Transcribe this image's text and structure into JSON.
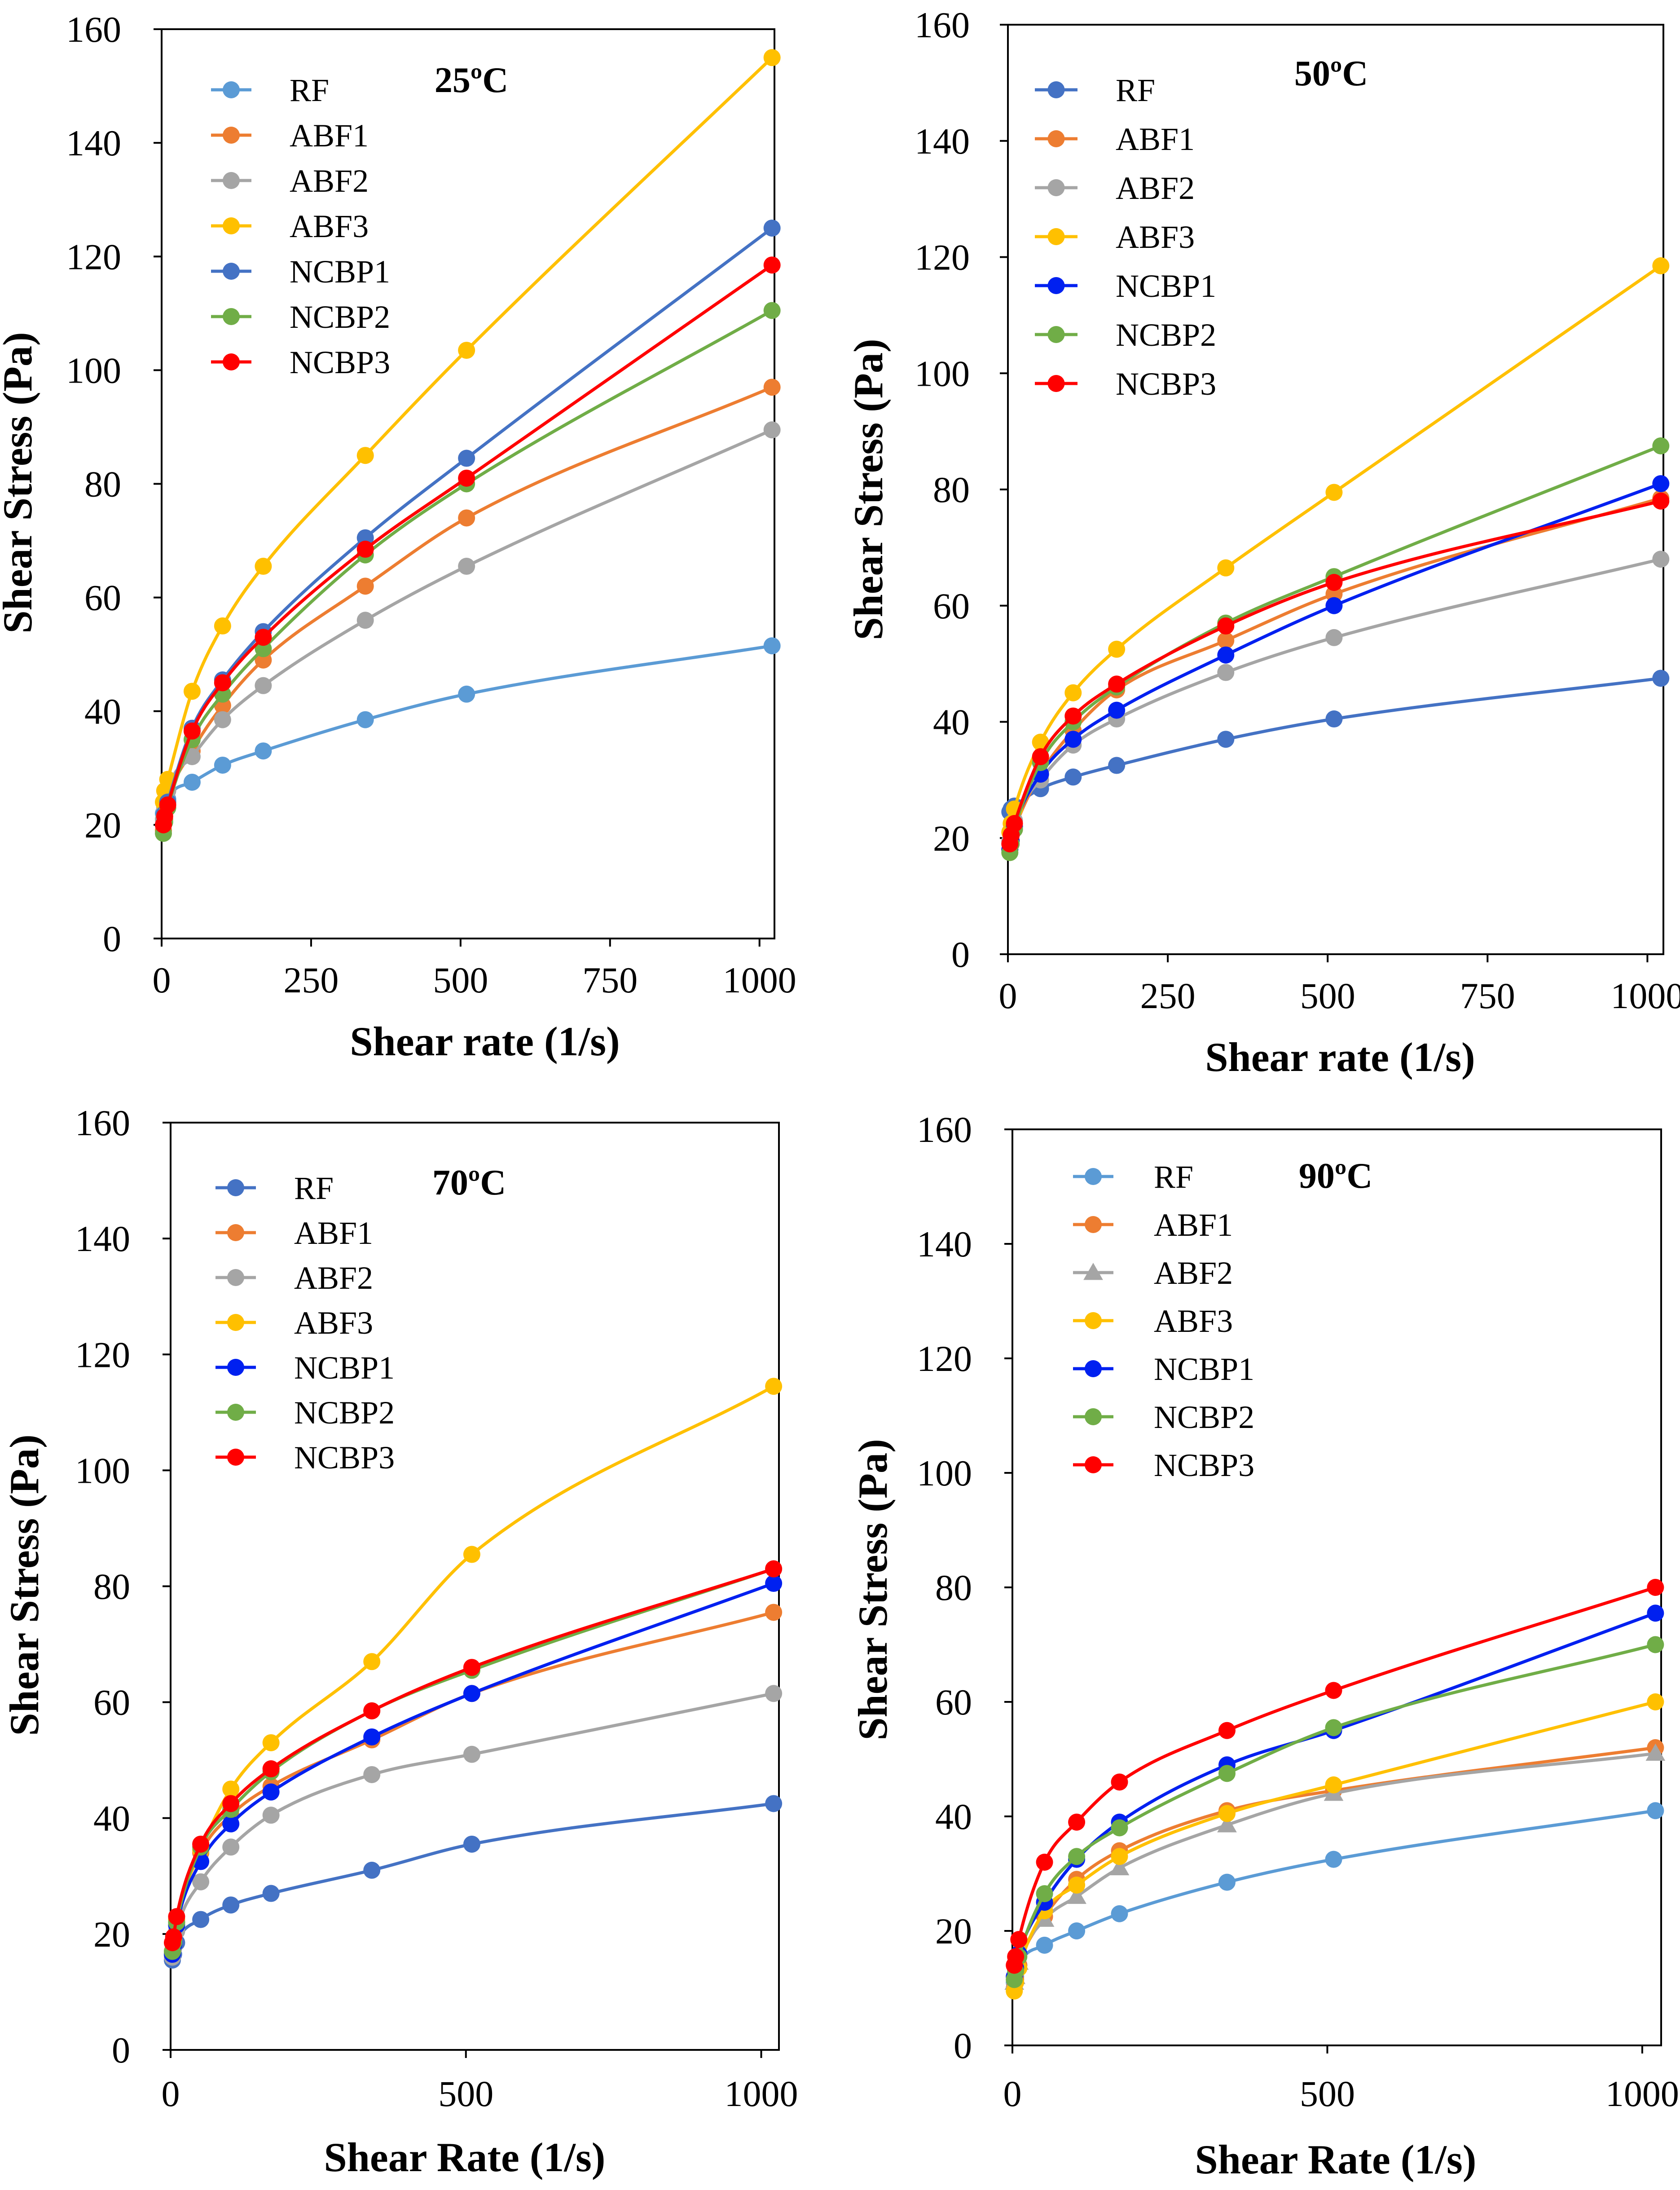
{
  "chart_data": [
    {
      "type": "line",
      "title": "25ºC",
      "xlabel": "Shear rate (1/s)",
      "ylabel": "Shear Stress (Pa)",
      "xlim": [
        0,
        1025
      ],
      "ylim": [
        0,
        160
      ],
      "xticks": [
        "0",
        "250",
        "500",
        "750",
        "1000"
      ],
      "xtick_values": [
        0,
        250,
        500,
        750,
        1000
      ],
      "yticks": [
        "0",
        "20",
        "40",
        "60",
        "80",
        "100",
        "120",
        "140",
        "160"
      ],
      "ytick_values": [
        0,
        20,
        40,
        60,
        80,
        100,
        120,
        140,
        160
      ],
      "x": [
        3,
        5.1,
        10.2,
        51,
        102,
        170,
        340.7,
        510,
        1021
      ],
      "series": [
        {
          "name": "RF",
          "color": "#5B9BD5",
          "marker": "circle",
          "values": [
            22,
            22.5,
            24.5,
            27.5,
            30.5,
            33,
            38.5,
            43,
            51.5
          ]
        },
        {
          "name": "ABF1",
          "color": "#ED7D31",
          "marker": "circle",
          "values": [
            19,
            21,
            24,
            33,
            41,
            49,
            62,
            74,
            97
          ]
        },
        {
          "name": "ABF2",
          "color": "#A5A5A5",
          "marker": "circle",
          "values": [
            21,
            23,
            26,
            32,
            38.5,
            44.5,
            56,
            65.5,
            89.5
          ]
        },
        {
          "name": "ABF3",
          "color": "#FFC000",
          "marker": "circle",
          "values": [
            24,
            26,
            28,
            43.5,
            55,
            65.5,
            85,
            103.5,
            155
          ]
        },
        {
          "name": "NCBP1",
          "color": "#4472C4",
          "marker": "circle",
          "values": [
            20,
            22,
            24,
            37,
            45.5,
            54,
            70.5,
            84.5,
            125
          ]
        },
        {
          "name": "NCBP2",
          "color": "#70AD47",
          "marker": "circle",
          "values": [
            18.5,
            20.5,
            23,
            35,
            43,
            51,
            67.5,
            80,
            110.5
          ]
        },
        {
          "name": "NCBP3",
          "color": "#FF0000",
          "marker": "circle",
          "values": [
            20,
            21.5,
            23.5,
            36.5,
            45,
            53,
            68.5,
            81,
            118.5
          ]
        }
      ]
    },
    {
      "type": "line",
      "title": "50ºC",
      "xlabel": "Shear rate (1/s)",
      "ylabel": "Shear Stress (Pa)",
      "xlim": [
        0,
        1025
      ],
      "ylim": [
        0,
        160
      ],
      "xticks": [
        "0",
        "250",
        "500",
        "750",
        "1000"
      ],
      "xtick_values": [
        0,
        250,
        500,
        750,
        1000
      ],
      "yticks": [
        "0",
        "20",
        "40",
        "60",
        "80",
        "100",
        "120",
        "140",
        "160"
      ],
      "ytick_values": [
        0,
        20,
        40,
        60,
        80,
        100,
        120,
        140,
        160
      ],
      "x": [
        3,
        5.1,
        10.2,
        51,
        102,
        170,
        340.7,
        510,
        1021
      ],
      "series": [
        {
          "name": "RF",
          "color": "#4472C4",
          "marker": "circle",
          "values": [
            24.5,
            25,
            25.5,
            28.5,
            30.5,
            32.5,
            37,
            40.5,
            47.5
          ]
        },
        {
          "name": "ABF1",
          "color": "#ED7D31",
          "marker": "circle",
          "values": [
            18,
            19.5,
            21.5,
            31,
            38.5,
            45.5,
            54,
            62,
            78.5
          ]
        },
        {
          "name": "ABF2",
          "color": "#A5A5A5",
          "marker": "circle",
          "values": [
            19.5,
            20.5,
            23,
            30,
            36,
            40.5,
            48.5,
            54.5,
            68
          ]
        },
        {
          "name": "ABF3",
          "color": "#FFC000",
          "marker": "circle",
          "values": [
            21,
            22.5,
            25,
            36.5,
            45,
            52.5,
            66.5,
            79.5,
            118.5
          ]
        },
        {
          "name": "NCBP1",
          "color": "#0020F0",
          "marker": "circle",
          "values": [
            18,
            19.5,
            22,
            31,
            37,
            42,
            51.5,
            60,
            81
          ]
        },
        {
          "name": "NCBP2",
          "color": "#70AD47",
          "marker": "circle",
          "values": [
            17.5,
            19,
            21.5,
            33,
            40,
            46,
            57,
            65,
            87.5
          ]
        },
        {
          "name": "NCBP3",
          "color": "#FF0000",
          "marker": "circle",
          "values": [
            19,
            20.5,
            22.5,
            34,
            41,
            46.5,
            56.5,
            64,
            78
          ]
        }
      ]
    },
    {
      "type": "line",
      "title": "70ºC",
      "xlabel": "Shear Rate (1/s)",
      "ylabel": "Shear Stress (Pa)",
      "xlim": [
        0,
        1030
      ],
      "ylim": [
        0,
        160
      ],
      "xticks": [
        "0",
        "500",
        "1000"
      ],
      "xtick_values": [
        0,
        500,
        1000
      ],
      "yticks": [
        "0",
        "20",
        "40",
        "60",
        "80",
        "100",
        "120",
        "140",
        "160"
      ],
      "ytick_values": [
        0,
        20,
        40,
        60,
        80,
        100,
        120,
        140,
        160
      ],
      "x": [
        3,
        5.1,
        10.2,
        51,
        102,
        170,
        340.7,
        510,
        1021
      ],
      "series": [
        {
          "name": "RF",
          "color": "#4472C4",
          "marker": "circle",
          "values": [
            15.5,
            16.5,
            18.5,
            22.5,
            25,
            27,
            31,
            35.5,
            42.5
          ]
        },
        {
          "name": "ABF1",
          "color": "#ED7D31",
          "marker": "circle",
          "values": [
            16.5,
            18,
            22,
            34,
            40.5,
            45.5,
            53.5,
            61.5,
            75.5
          ]
        },
        {
          "name": "ABF2",
          "color": "#A5A5A5",
          "marker": "circle",
          "values": [
            16,
            17.5,
            20.5,
            29,
            35,
            40.5,
            47.5,
            51,
            61.5
          ]
        },
        {
          "name": "ABF3",
          "color": "#FFC000",
          "marker": "circle",
          "values": [
            17,
            19,
            22.5,
            34.5,
            45,
            53,
            67,
            85.5,
            114.5
          ]
        },
        {
          "name": "NCBP1",
          "color": "#0020F0",
          "marker": "circle",
          "values": [
            16.5,
            18,
            21.5,
            32.5,
            39,
            44.5,
            54,
            61.5,
            80.5
          ]
        },
        {
          "name": "NCBP2",
          "color": "#70AD47",
          "marker": "circle",
          "values": [
            17,
            18.5,
            22,
            35,
            41.5,
            48,
            58.5,
            65.5,
            83
          ]
        },
        {
          "name": "NCBP3",
          "color": "#FF0000",
          "marker": "circle",
          "values": [
            18.5,
            19.5,
            23,
            35.5,
            42.5,
            48.5,
            58.5,
            66,
            83
          ]
        }
      ]
    },
    {
      "type": "line",
      "title": "90ºC",
      "xlabel": "Shear Rate (1/s)",
      "ylabel": "Shear Stress (Pa)",
      "xlim": [
        0,
        1030
      ],
      "ylim": [
        0,
        160
      ],
      "xticks": [
        "0",
        "500",
        "1000"
      ],
      "xtick_values": [
        0,
        500,
        1000
      ],
      "yticks": [
        "0",
        "20",
        "40",
        "60",
        "80",
        "100",
        "120",
        "140",
        "160"
      ],
      "ytick_values": [
        0,
        20,
        40,
        60,
        80,
        100,
        120,
        140,
        160
      ],
      "x": [
        3,
        5.1,
        10.2,
        51,
        102,
        170,
        340.7,
        510,
        1021
      ],
      "series": [
        {
          "name": "RF",
          "color": "#5B9BD5",
          "marker": "circle",
          "values": [
            11,
            12,
            14,
            17.5,
            20,
            23,
            28.5,
            32.5,
            41
          ]
        },
        {
          "name": "ABF1",
          "color": "#ED7D31",
          "marker": "circle",
          "values": [
            10,
            11.5,
            14,
            22.5,
            29,
            34,
            41,
            44.5,
            52
          ]
        },
        {
          "name": "ABF2",
          "color": "#A5A5A5",
          "marker": "triangle",
          "values": [
            11,
            12,
            14.5,
            22,
            26,
            31,
            38.5,
            44,
            51
          ]
        },
        {
          "name": "ABF3",
          "color": "#FFC000",
          "marker": "circle",
          "values": [
            9.5,
            11,
            13.5,
            23.5,
            28,
            33,
            40.5,
            45.5,
            60
          ]
        },
        {
          "name": "NCBP1",
          "color": "#0020F0",
          "marker": "circle",
          "values": [
            12,
            13.5,
            16,
            25,
            32.5,
            39,
            49,
            55,
            75.5
          ]
        },
        {
          "name": "NCBP2",
          "color": "#70AD47",
          "marker": "circle",
          "values": [
            11.5,
            13,
            15.5,
            26.5,
            33,
            38,
            47.5,
            55.5,
            70
          ]
        },
        {
          "name": "NCBP3",
          "color": "#FF0000",
          "marker": "circle",
          "values": [
            14,
            15.5,
            18.5,
            32,
            39,
            46,
            55,
            62,
            80
          ]
        }
      ]
    }
  ]
}
